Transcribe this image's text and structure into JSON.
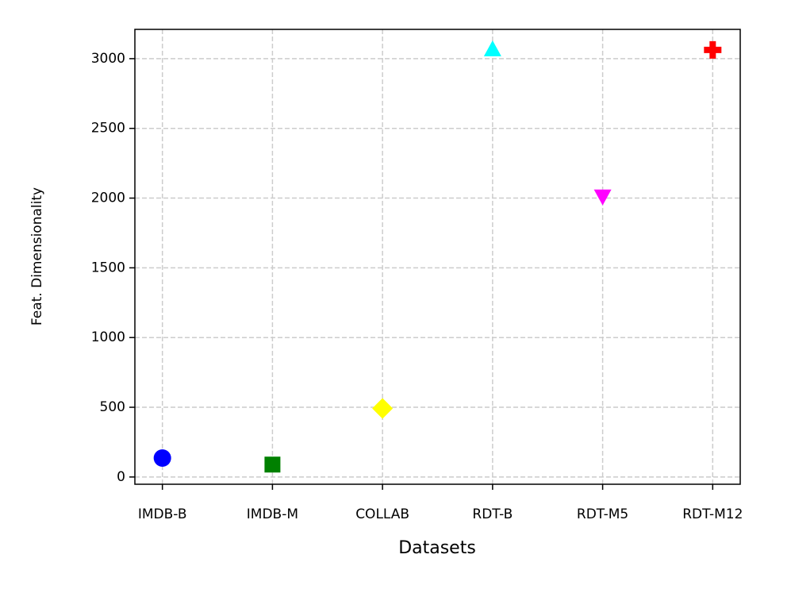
{
  "chart_data": {
    "type": "scatter",
    "categories": [
      "IMDB-B",
      "IMDB-M",
      "COLLAB",
      "RDT-B",
      "RDT-M5",
      "RDT-M12"
    ],
    "values": [
      136,
      89,
      492,
      3063,
      2016,
      3063
    ],
    "colors": [
      "#0000ff",
      "#008000",
      "#ffff00",
      "#00ffff",
      "#ff00ff",
      "#ff0000"
    ],
    "markers": [
      "circle",
      "square",
      "diamond",
      "triangle-up",
      "triangle-down",
      "plus"
    ],
    "xlabel": "Datasets",
    "ylabel": "Feat. Dimensionality",
    "ylim": [
      -52,
      3210
    ],
    "yticks": [
      0,
      500,
      1000,
      1500,
      2000,
      2500,
      3000
    ],
    "grid": true
  }
}
